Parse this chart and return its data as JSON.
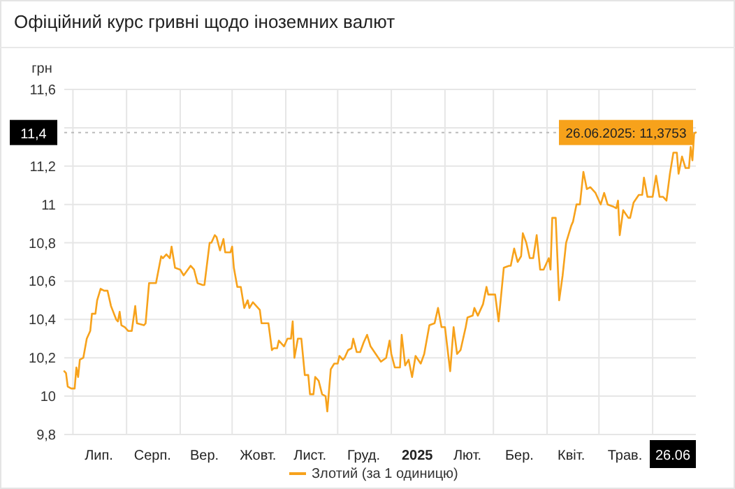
{
  "chart_data": {
    "type": "line",
    "title": "Офіційний курс гривні щодо іноземних валют",
    "ylabel": "грн",
    "xlim": [
      "2024-06-26",
      "2025-06-26"
    ],
    "xticks": [
      {
        "value": "2024-07-01",
        "label": null
      },
      {
        "value": "2024-07-16",
        "label": "Лип."
      },
      {
        "value": "2024-08-01",
        "label": null
      },
      {
        "value": "2024-08-16",
        "label": "Серп."
      },
      {
        "value": "2024-09-01",
        "label": null
      },
      {
        "value": "2024-09-15",
        "label": "Вер."
      },
      {
        "value": "2024-10-01",
        "label": null
      },
      {
        "value": "2024-10-16",
        "label": "Жовт."
      },
      {
        "value": "2024-11-01",
        "label": null
      },
      {
        "value": "2024-11-15",
        "label": "Лист."
      },
      {
        "value": "2024-12-01",
        "label": null
      },
      {
        "value": "2024-12-16",
        "label": "Груд."
      },
      {
        "value": "2025-01-01",
        "label": null
      },
      {
        "value": "2025-01-16",
        "label": "2025"
      },
      {
        "value": "2025-02-01",
        "label": null
      },
      {
        "value": "2025-02-14",
        "label": "Лют."
      },
      {
        "value": "2025-03-01",
        "label": null
      },
      {
        "value": "2025-03-16",
        "label": "Бер."
      },
      {
        "value": "2025-04-01",
        "label": null
      },
      {
        "value": "2025-04-15",
        "label": "Квіт."
      },
      {
        "value": "2025-05-01",
        "label": null
      },
      {
        "value": "2025-05-16",
        "label": "Трав."
      },
      {
        "value": "2025-06-01",
        "label": null
      },
      {
        "value": "2025-06-26",
        "label": "26.06"
      }
    ],
    "ylim": [
      9.8,
      11.6
    ],
    "yticks": [
      {
        "value": 9.8,
        "label": "9,8"
      },
      {
        "value": 10,
        "label": "10"
      },
      {
        "value": 10.2,
        "label": "10,2"
      },
      {
        "value": 10.4,
        "label": "10,4"
      },
      {
        "value": 10.6,
        "label": "10,6"
      },
      {
        "value": 10.8,
        "label": "10,8"
      },
      {
        "value": 11,
        "label": "11"
      },
      {
        "value": 11.2,
        "label": "11,2"
      },
      {
        "value": 11.4,
        "label": null
      },
      {
        "value": 11.6,
        "label": "11,6"
      }
    ],
    "grid": true,
    "legend": "bottom",
    "marker": "none",
    "line_style": "solid",
    "ref_lines": [
      {
        "axis": "y",
        "value": 11.3753,
        "label": "11,4",
        "line_style": "dotted",
        "color": "#bbbbbb"
      }
    ],
    "annotations": [
      {
        "text": "26.06.2025: 11,3753",
        "x": "2025-06-26",
        "y": 11.3753
      }
    ],
    "x": [
      "2024-06-26",
      "2024-06-27",
      "2024-06-28",
      "2024-06-30",
      "2024-07-02",
      "2024-07-03",
      "2024-07-04",
      "2024-07-05",
      "2024-07-07",
      "2024-07-09",
      "2024-07-11",
      "2024-07-12",
      "2024-07-14",
      "2024-07-15",
      "2024-07-17",
      "2024-07-19",
      "2024-07-21",
      "2024-07-23",
      "2024-07-26",
      "2024-07-27",
      "2024-07-28",
      "2024-07-29",
      "2024-07-31",
      "2024-08-02",
      "2024-08-04",
      "2024-08-06",
      "2024-08-07",
      "2024-08-11",
      "2024-08-12",
      "2024-08-14",
      "2024-08-15",
      "2024-08-18",
      "2024-08-21",
      "2024-08-22",
      "2024-08-24",
      "2024-08-26",
      "2024-08-27",
      "2024-08-29",
      "2024-09-01",
      "2024-09-03",
      "2024-09-07",
      "2024-09-09",
      "2024-09-11",
      "2024-09-14",
      "2024-09-15",
      "2024-09-18",
      "2024-09-19",
      "2024-09-21",
      "2024-09-22",
      "2024-09-24",
      "2024-09-26",
      "2024-09-27",
      "2024-09-30",
      "2024-10-01",
      "2024-10-02",
      "2024-10-04",
      "2024-10-06",
      "2024-10-08",
      "2024-10-10",
      "2024-10-11",
      "2024-10-13",
      "2024-10-17",
      "2024-10-18",
      "2024-10-22",
      "2024-10-24",
      "2024-10-25",
      "2024-10-27",
      "2024-10-28",
      "2024-10-31",
      "2024-11-02",
      "2024-11-04",
      "2024-11-05",
      "2024-11-06",
      "2024-11-08",
      "2024-11-10",
      "2024-11-12",
      "2024-11-14",
      "2024-11-15",
      "2024-11-17",
      "2024-11-18",
      "2024-11-20",
      "2024-11-22",
      "2024-11-24",
      "2024-11-25",
      "2024-11-27",
      "2024-11-29",
      "2024-12-01",
      "2024-12-02",
      "2024-12-04",
      "2024-12-05",
      "2024-12-07",
      "2024-12-09",
      "2024-12-10",
      "2024-12-12",
      "2024-12-14",
      "2024-12-16",
      "2024-12-18",
      "2024-12-20",
      "2024-12-23",
      "2024-12-26",
      "2024-12-29",
      "2024-12-31",
      "2025-01-01",
      "2025-01-03",
      "2025-01-06",
      "2025-01-07",
      "2025-01-09",
      "2025-01-11",
      "2025-01-13",
      "2025-01-15",
      "2025-01-18",
      "2025-01-20",
      "2025-01-23",
      "2025-01-26",
      "2025-01-28",
      "2025-01-30",
      "2025-02-01",
      "2025-02-04",
      "2025-02-06",
      "2025-02-08",
      "2025-02-10",
      "2025-02-13",
      "2025-02-14",
      "2025-02-17",
      "2025-02-18",
      "2025-02-20",
      "2025-02-23",
      "2025-02-25",
      "2025-02-26",
      "2025-03-02",
      "2025-03-04",
      "2025-03-07",
      "2025-03-10",
      "2025-03-11",
      "2025-03-13",
      "2025-03-15",
      "2025-03-17",
      "2025-03-18",
      "2025-03-20",
      "2025-03-22",
      "2025-03-24",
      "2025-03-26",
      "2025-03-28",
      "2025-03-30",
      "2025-04-02",
      "2025-04-03",
      "2025-04-04",
      "2025-04-06",
      "2025-04-07",
      "2025-04-08",
      "2025-04-10",
      "2025-04-12",
      "2025-04-15",
      "2025-04-16",
      "2025-04-18",
      "2025-04-20",
      "2025-04-22",
      "2025-04-24",
      "2025-04-26",
      "2025-04-29",
      "2025-05-02",
      "2025-05-04",
      "2025-05-06",
      "2025-05-09",
      "2025-05-11",
      "2025-05-12",
      "2025-05-13",
      "2025-05-15",
      "2025-05-18",
      "2025-05-19",
      "2025-05-21",
      "2025-05-24",
      "2025-05-26",
      "2025-05-27",
      "2025-05-29",
      "2025-06-01",
      "2025-06-03",
      "2025-06-05",
      "2025-06-07",
      "2025-06-09",
      "2025-06-11",
      "2025-06-13",
      "2025-06-15",
      "2025-06-16",
      "2025-06-18",
      "2025-06-20",
      "2025-06-22",
      "2025-06-23",
      "2025-06-24",
      "2025-06-25",
      "2025-06-26"
    ],
    "series": [
      {
        "name": "Злотий (за 1 одиницю)",
        "color": "#f7a21b",
        "values": [
          10.13,
          10.12,
          10.05,
          10.04,
          10.04,
          10.15,
          10.1,
          10.19,
          10.2,
          10.3,
          10.34,
          10.43,
          10.43,
          10.5,
          10.56,
          10.55,
          10.55,
          10.47,
          10.4,
          10.39,
          10.44,
          10.37,
          10.36,
          10.34,
          10.34,
          10.47,
          10.38,
          10.37,
          10.38,
          10.59,
          10.59,
          10.59,
          10.73,
          10.72,
          10.74,
          10.72,
          10.78,
          10.67,
          10.66,
          10.63,
          10.68,
          10.66,
          10.59,
          10.58,
          10.58,
          10.8,
          10.8,
          10.84,
          10.83,
          10.76,
          10.82,
          10.75,
          10.75,
          10.78,
          10.67,
          10.57,
          10.57,
          10.46,
          10.5,
          10.46,
          10.49,
          10.45,
          10.38,
          10.38,
          10.24,
          10.25,
          10.25,
          10.29,
          10.26,
          10.3,
          10.3,
          10.39,
          10.2,
          10.3,
          10.3,
          10.11,
          10.11,
          10.01,
          10.01,
          10.1,
          10.08,
          10.01,
          10.0,
          9.92,
          10.14,
          10.17,
          10.17,
          10.21,
          10.19,
          10.2,
          10.24,
          10.25,
          10.3,
          10.23,
          10.23,
          10.28,
          10.32,
          10.26,
          10.22,
          10.18,
          10.2,
          10.29,
          10.22,
          10.15,
          10.15,
          10.32,
          10.16,
          10.19,
          10.1,
          10.21,
          10.17,
          10.22,
          10.37,
          10.38,
          10.46,
          10.36,
          10.36,
          10.13,
          10.36,
          10.22,
          10.24,
          10.36,
          10.41,
          10.42,
          10.46,
          10.42,
          10.48,
          10.57,
          10.53,
          10.53,
          10.39,
          10.67,
          10.68,
          10.68,
          10.77,
          10.7,
          10.73,
          10.85,
          10.8,
          10.72,
          10.72,
          10.84,
          10.66,
          10.66,
          10.72,
          10.66,
          10.93,
          10.93,
          10.72,
          10.5,
          10.63,
          10.8,
          10.89,
          10.91,
          11.0,
          11.0,
          11.17,
          11.08,
          11.09,
          11.06,
          11.0,
          11.06,
          11.0,
          10.99,
          10.98,
          11.02,
          10.84,
          10.97,
          10.93,
          10.93,
          11.01,
          11.05,
          11.05,
          11.14,
          11.04,
          11.04,
          11.15,
          11.04,
          11.04,
          11.02,
          11.16,
          11.27,
          11.27,
          11.16,
          11.25,
          11.19,
          11.19,
          11.3,
          11.23,
          11.37,
          11.3753
        ]
      }
    ]
  }
}
